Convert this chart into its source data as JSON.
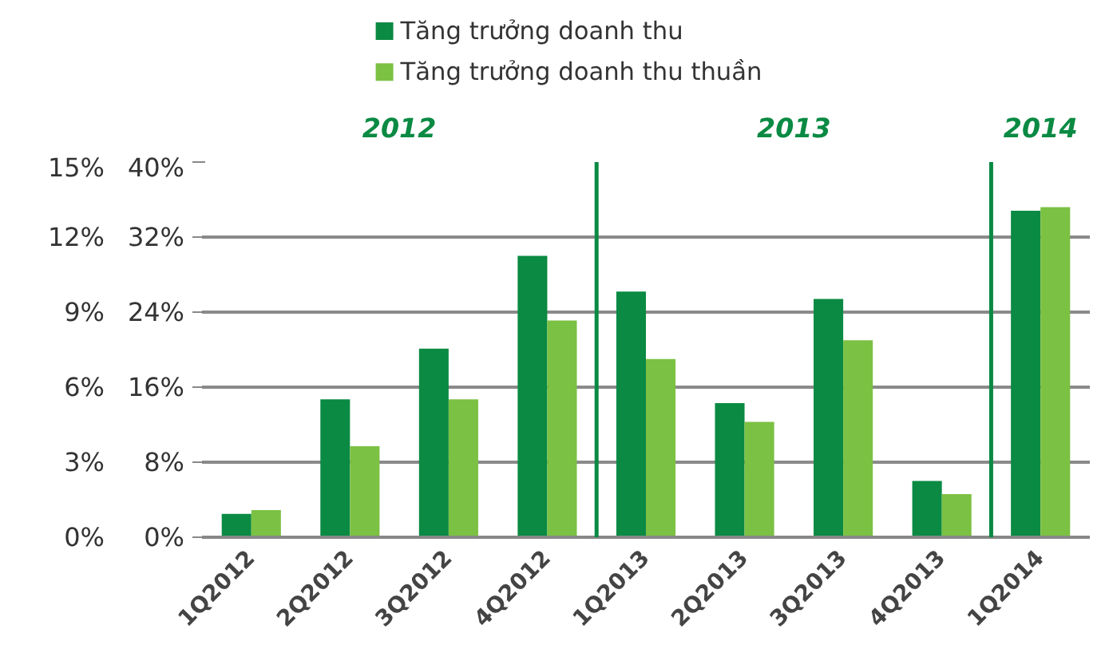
{
  "chart_data": {
    "type": "bar",
    "categories": [
      "1Q2012",
      "2Q2012",
      "3Q2012",
      "4Q2012",
      "1Q2013",
      "2Q2013",
      "3Q2013",
      "4Q2013",
      "1Q2014"
    ],
    "series": [
      {
        "name": "Tăng trưởng doanh thu",
        "color": "#0a8a43",
        "values": [
          2.5,
          14.7,
          20.1,
          30.0,
          26.2,
          14.3,
          25.4,
          6.0,
          34.8
        ]
      },
      {
        "name": "Tăng trưởng doanh thu thuần",
        "color": "#7bc143",
        "values": [
          2.9,
          9.7,
          14.7,
          23.1,
          19.0,
          12.3,
          21.0,
          4.6,
          35.2
        ]
      }
    ],
    "ylim": [
      0,
      40
    ],
    "yticks": [
      {
        "value": 0,
        "label": "0%"
      },
      {
        "value": 8,
        "label": "8%"
      },
      {
        "value": 16,
        "label": "16%"
      },
      {
        "value": 24,
        "label": "24%"
      },
      {
        "value": 32,
        "label": "32%"
      },
      {
        "value": 40,
        "label": "40%"
      }
    ],
    "y2lim": [
      0,
      15
    ],
    "y2ticks": [
      {
        "value": 0,
        "label": "0%"
      },
      {
        "value": 3,
        "label": "3%"
      },
      {
        "value": 6,
        "label": "6%"
      },
      {
        "value": 9,
        "label": "9%"
      },
      {
        "value": 12,
        "label": "12%"
      },
      {
        "value": 15,
        "label": "15%"
      }
    ],
    "ref_lines": [
      {
        "axis": "x",
        "value": "1Q2013",
        "color": "#0a8a43"
      },
      {
        "axis": "x",
        "value": "1Q2014",
        "color": "#0a8a43"
      }
    ],
    "annotations": [
      "2012",
      "2013",
      "2014"
    ],
    "grid": "y",
    "legend": "top"
  }
}
